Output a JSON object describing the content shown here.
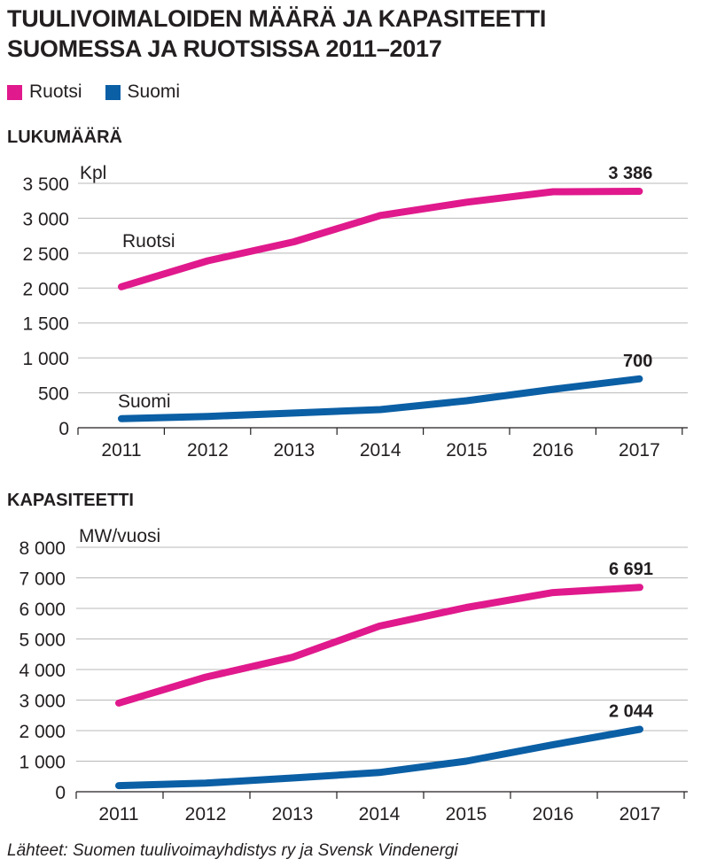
{
  "title": {
    "line1": "TUULIVOIMALOIDEN MÄÄRÄ JA KAPASITEETTI",
    "line2": "SUOMESSA JA RUOTSISSA 2011–2017"
  },
  "legend": [
    {
      "label": "Ruotsi",
      "color": "#e0198c"
    },
    {
      "label": "Suomi",
      "color": "#0b5fa5"
    }
  ],
  "source": "Lähteet: Suomen tuulivoimayhdistys ry ja Svensk Vindenergi",
  "chart_data": [
    {
      "type": "line",
      "title": "LUKUMÄÄRÄ",
      "ylabel": "Kpl",
      "xlabel": "",
      "categories": [
        "2011",
        "2012",
        "2013",
        "2014",
        "2015",
        "2016",
        "2017"
      ],
      "ylim": [
        0,
        3500
      ],
      "yticks": [
        0,
        500,
        1000,
        1500,
        2000,
        2500,
        3000,
        3500
      ],
      "ytick_labels": [
        "0",
        "500",
        "1 000",
        "1 500",
        "2 000",
        "2 500",
        "3 000",
        "3 500"
      ],
      "grid": true,
      "series": [
        {
          "name": "Ruotsi",
          "color": "#e0198c",
          "values": [
            2019,
            2390,
            2663,
            3040,
            3230,
            3380,
            3386
          ],
          "inline_label": "Ruotsi",
          "end_label": "3 386"
        },
        {
          "name": "Suomi",
          "color": "#0b5fa5",
          "values": [
            130,
            162,
            211,
            260,
            387,
            550,
            700
          ],
          "inline_label": "Suomi",
          "end_label": "700"
        }
      ]
    },
    {
      "type": "line",
      "title": "KAPASITEETTI",
      "ylabel": "MW/vuosi",
      "xlabel": "",
      "categories": [
        "2011",
        "2012",
        "2013",
        "2014",
        "2015",
        "2016",
        "2017"
      ],
      "ylim": [
        0,
        8000
      ],
      "yticks": [
        0,
        1000,
        2000,
        3000,
        4000,
        5000,
        6000,
        7000,
        8000
      ],
      "ytick_labels": [
        "0",
        "1 000",
        "2 000",
        "3 000",
        "4 000",
        "5 000",
        "6 000",
        "7 000",
        "8 000"
      ],
      "grid": true,
      "series": [
        {
          "name": "Ruotsi",
          "color": "#e0198c",
          "values": [
            2900,
            3750,
            4400,
            5420,
            6030,
            6520,
            6691
          ],
          "end_label": "6 691"
        },
        {
          "name": "Suomi",
          "color": "#0b5fa5",
          "values": [
            200,
            280,
            450,
            630,
            1000,
            1540,
            2044
          ],
          "end_label": "2 044"
        }
      ]
    }
  ]
}
